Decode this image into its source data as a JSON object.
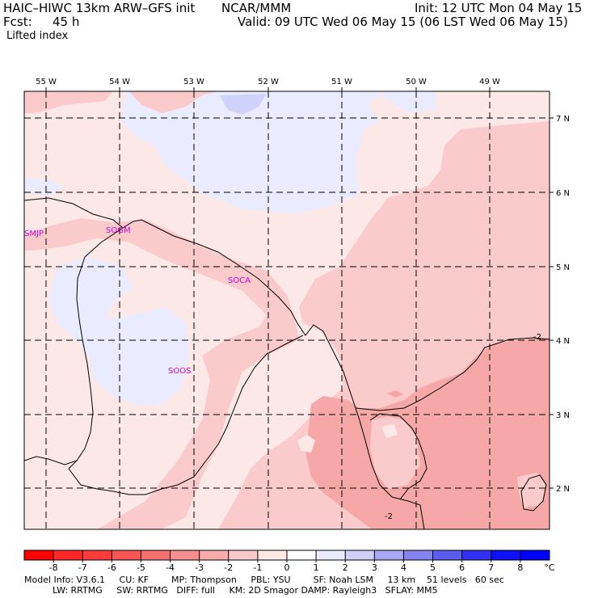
{
  "header": {
    "model_line": "HAIC–HIWC 13km ARW–GFS init",
    "institute": "NCAR/MMM",
    "init": "Init: 12 UTC Mon 04 May 15",
    "fcst_label": "Fcst:",
    "fcst_value": "45 h",
    "valid": "Valid: 09 UTC Wed 06 May 15 (06 LST Wed 06 May 15)",
    "field": "Lifted index"
  },
  "map": {
    "lon_labels": [
      "55 W",
      "54 W",
      "53 W",
      "52 W",
      "51 W",
      "50 W",
      "49 W"
    ],
    "lat_labels": [
      "7 N",
      "6 N",
      "5 N",
      "4 N",
      "3 N",
      "2 N"
    ],
    "stations": [
      "SMJP",
      "SOGM",
      "SOCA",
      "SOOS"
    ],
    "contour_labels": [
      "-2",
      "-2"
    ],
    "colors": {
      "bg_light_pink": "#fde8e8",
      "pink": "#fbcaca",
      "salmon": "#f6a8a8",
      "lavender": "#ebebff",
      "blue_patch": "#cfd2fb",
      "station": "#d400d4"
    }
  },
  "legend": {
    "ticks": [
      "-8",
      "-7",
      "-6",
      "-5",
      "-4",
      "-3",
      "-2",
      "-1",
      "0",
      "1",
      "2",
      "3",
      "4",
      "5",
      "6",
      "7",
      "8"
    ],
    "unit": "°C",
    "colors": [
      "#ff0000",
      "#ff2626",
      "#ff3c3c",
      "#f85555",
      "#f47070",
      "#f68e8e",
      "#f8abab",
      "#fbcaca",
      "#fde8e8",
      "#ffffff",
      "#ebebff",
      "#cfcff8",
      "#a8a8f4",
      "#8484f0",
      "#5c5cf0",
      "#3232f4",
      "#1010f8",
      "#0000ff"
    ]
  },
  "footer": {
    "line1": "Model Info: V3.6.1     CU: KF        MP: Thompson     PBL: YSU        SF: Noah LSM     13 km    51 levels   60 sec",
    "line2": "          LW: RRTMG     SW: RRTMG   DIFF: full     KM: 2D Smagor DAMP: Rayleigh3   SFLAY: MM5"
  }
}
